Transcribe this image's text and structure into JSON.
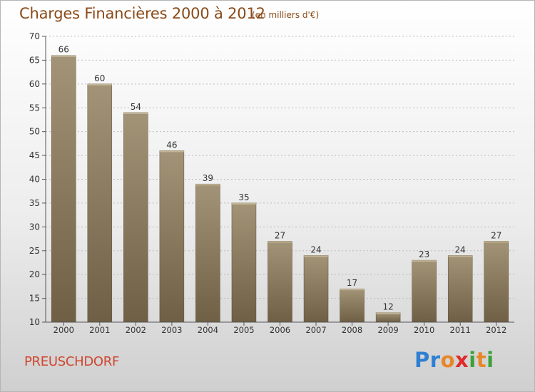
{
  "header": {
    "title": "Charges Financières 2000 à 2012",
    "subtitle": "(en milliers d'€)"
  },
  "footer": {
    "commune": "PREUSCHDORF",
    "logo_letters": [
      {
        "ch": "P",
        "color": "#2f7fd2"
      },
      {
        "ch": "r",
        "color": "#2f7fd2"
      },
      {
        "ch": "o",
        "color": "#e8872a"
      },
      {
        "ch": "x",
        "color": "#e02b2b"
      },
      {
        "ch": "i",
        "color": "#3ea13a"
      },
      {
        "ch": "t",
        "color": "#e8872a"
      },
      {
        "ch": "i",
        "color": "#3ea13a"
      }
    ]
  },
  "colors": {
    "bar_top": "#a39478",
    "bar_bottom": "#6f5f44",
    "axis": "#555555",
    "grid": "#bdbdbd"
  },
  "chart_data": {
    "type": "bar",
    "title": "Charges Financières 2000 à 2012",
    "subtitle": "(en milliers d'€)",
    "categories": [
      "2000",
      "2001",
      "2002",
      "2003",
      "2004",
      "2005",
      "2006",
      "2007",
      "2008",
      "2009",
      "2010",
      "2011",
      "2012"
    ],
    "values": [
      66,
      60,
      54,
      46,
      39,
      35,
      27,
      24,
      17,
      12,
      23,
      24,
      27
    ],
    "ylim": [
      10,
      70
    ],
    "yticks": [
      10,
      15,
      20,
      25,
      30,
      35,
      40,
      45,
      50,
      55,
      60,
      65,
      70
    ],
    "grid": true,
    "data_labels": true
  }
}
